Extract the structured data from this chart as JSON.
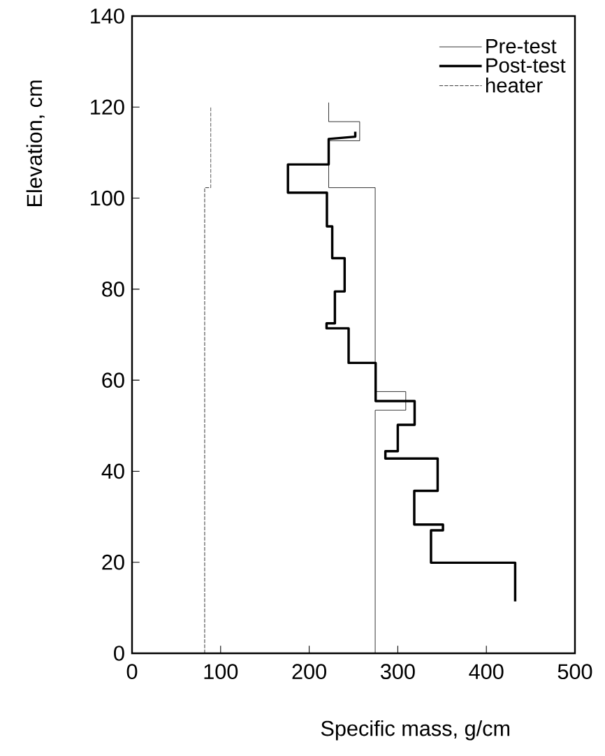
{
  "chart_data": {
    "type": "line",
    "xlabel": "Specific mass, g/cm",
    "ylabel": "Elevation, cm",
    "xlim": [
      0,
      500
    ],
    "ylim": [
      0,
      140
    ],
    "xticks": [
      0,
      100,
      200,
      300,
      400,
      500
    ],
    "yticks": [
      0,
      20,
      40,
      60,
      80,
      100,
      120,
      140
    ],
    "legend": "top right",
    "grid": false,
    "marker": "none",
    "series": [
      {
        "name": "Pre-test",
        "color": "#000000",
        "line_style": "solid",
        "x": [
          222,
          222,
          257,
          257,
          222,
          222,
          274.5,
          274.5,
          309,
          309,
          274.5,
          274.5
        ],
        "values": [
          121,
          116.8,
          116.8,
          112.6,
          112.6,
          102.3,
          102.3,
          57.5,
          57.5,
          53.4,
          53.4,
          0
        ]
      },
      {
        "name": "Post-test",
        "color": "#000000",
        "line_style": "solid",
        "x": [
          252,
          252,
          222,
          222,
          176,
          176,
          220,
          220,
          226,
          226,
          240,
          240,
          229,
          229,
          219.6,
          219.6,
          244.5,
          244.5,
          275,
          275,
          319,
          319,
          300,
          300,
          286,
          286,
          345,
          345,
          318.6,
          318.6,
          351,
          351,
          337.5,
          337.5,
          432.5,
          432.5
        ],
        "values": [
          114.6,
          113.5,
          113,
          107.4,
          107.4,
          101.2,
          101.2,
          93.8,
          93.8,
          86.8,
          86.8,
          79.5,
          79.5,
          72.5,
          72.5,
          71.4,
          71.4,
          63.8,
          63.8,
          55.4,
          55.4,
          50.2,
          50.2,
          44.4,
          44.4,
          42.8,
          42.8,
          35.7,
          35.7,
          28.3,
          28.3,
          27,
          27,
          19.9,
          19.9,
          11.4
        ]
      },
      {
        "name": "heater",
        "color": "#000000",
        "line_style": "dashed",
        "x": [
          82,
          82,
          89,
          89
        ],
        "values": [
          0,
          102.3,
          102.3,
          120
        ]
      }
    ]
  }
}
